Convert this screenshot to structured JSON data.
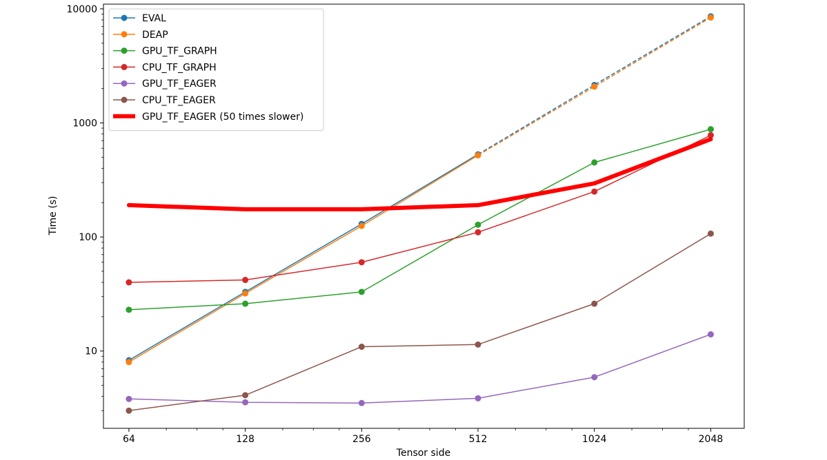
{
  "chart_data": {
    "type": "line",
    "title": "",
    "xlabel": "Tensor side",
    "ylabel": "Time (s)",
    "x_scale": "log2",
    "y_scale": "log10",
    "x": [
      64,
      128,
      256,
      512,
      1024,
      2048
    ],
    "x_tick_labels": [
      "64",
      "128",
      "256",
      "512",
      "1024",
      "2048"
    ],
    "y_tick_labels": [
      "10",
      "100",
      "1000",
      "10000"
    ],
    "y_ticks": [
      10,
      100,
      1000,
      10000
    ],
    "ylim": [
      2.1,
      11000
    ],
    "xlim": [
      55,
      2500
    ],
    "grid": false,
    "legend_position": "top-left",
    "series": [
      {
        "name": "EVAL",
        "color": "#1f77b4",
        "marker": true,
        "width": 1.5,
        "values": [
          8.3,
          33,
          130,
          530,
          null,
          null
        ],
        "extrapolated": [
          530,
          2150,
          8600
        ]
      },
      {
        "name": "DEAP",
        "color": "#ff7f0e",
        "marker": true,
        "width": 1.5,
        "values": [
          8.0,
          32,
          125,
          520,
          null,
          null
        ],
        "extrapolated": [
          520,
          2080,
          8400
        ]
      },
      {
        "name": "GPU_TF_GRAPH",
        "color": "#2ca02c",
        "marker": true,
        "width": 1.5,
        "values": [
          23,
          26,
          33,
          128,
          450,
          880
        ]
      },
      {
        "name": "CPU_TF_GRAPH",
        "color": "#d62728",
        "marker": true,
        "width": 1.5,
        "values": [
          40,
          42,
          60,
          110,
          250,
          780
        ]
      },
      {
        "name": "GPU_TF_EAGER",
        "color": "#9467bd",
        "marker": true,
        "width": 1.5,
        "values": [
          3.8,
          3.55,
          3.5,
          3.85,
          5.9,
          14
        ]
      },
      {
        "name": "CPU_TF_EAGER",
        "color": "#8c564b",
        "marker": true,
        "width": 1.5,
        "values": [
          3.0,
          4.1,
          10.9,
          11.4,
          26,
          107
        ]
      },
      {
        "name": "GPU_TF_EAGER (50 times slower)",
        "color": "#ff0000",
        "marker": false,
        "width": 6,
        "values": [
          190,
          175,
          175,
          190,
          295,
          720
        ]
      }
    ]
  }
}
